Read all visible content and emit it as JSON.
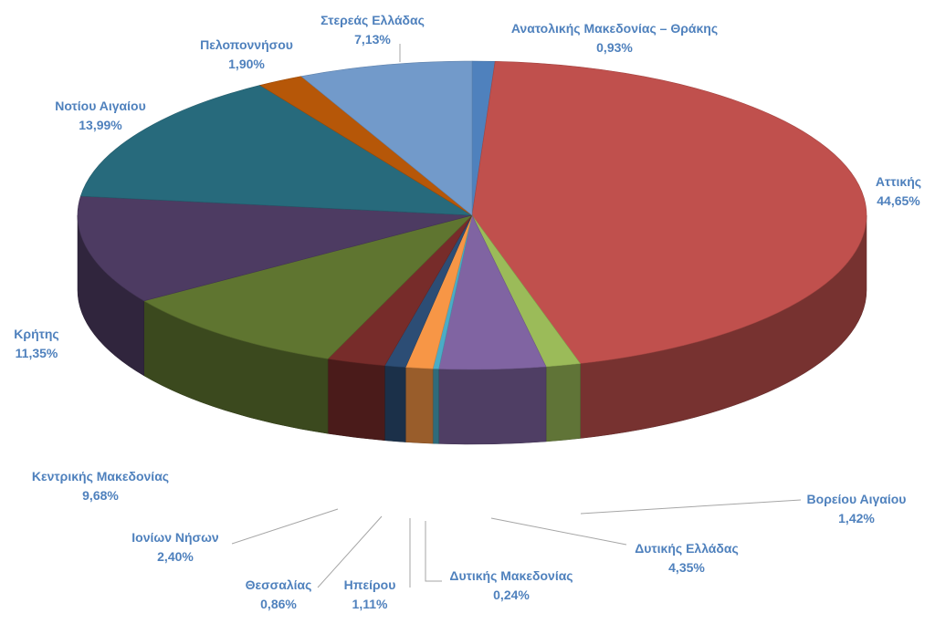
{
  "chart_data": {
    "type": "pie",
    "title": "",
    "start_angle_deg": 0,
    "direction": "clockwise",
    "value_unit": "%",
    "slices": [
      {
        "label": "Ανατολικής Μακεδονίας – Θράκης",
        "value": 0.93,
        "value_label": "0,93%",
        "color": "#4f81bd"
      },
      {
        "label": "Αττικής",
        "value": 44.65,
        "value_label": "44,65%",
        "color": "#c0504d"
      },
      {
        "label": "Βορείου Αιγαίου",
        "value": 1.42,
        "value_label": "1,42%",
        "color": "#9bbb59"
      },
      {
        "label": "Δυτικής Ελλάδας",
        "value": 4.35,
        "value_label": "4,35%",
        "color": "#8064a2"
      },
      {
        "label": "Δυτικής Μακεδονίας",
        "value": 0.24,
        "value_label": "0,24%",
        "color": "#4bacc6"
      },
      {
        "label": "Ηπείρου",
        "value": 1.11,
        "value_label": "1,11%",
        "color": "#f79646"
      },
      {
        "label": "Θεσσαλίας",
        "value": 0.86,
        "value_label": "0,86%",
        "color": "#2c4d75"
      },
      {
        "label": "Ιονίων Νήσων",
        "value": 2.4,
        "value_label": "2,40%",
        "color": "#772c2a"
      },
      {
        "label": "Κεντρικής Μακεδονίας",
        "value": 9.68,
        "value_label": "9,68%",
        "color": "#5f7530"
      },
      {
        "label": "Κρήτης",
        "value": 11.35,
        "value_label": "11,35%",
        "color": "#4d3b62"
      },
      {
        "label": "Νοτίου Αιγαίου",
        "value": 13.99,
        "value_label": "13,99%",
        "color": "#276a7c"
      },
      {
        "label": "Πελοποννήσου",
        "value": 1.9,
        "value_label": "1,90%",
        "color": "#b65708"
      },
      {
        "label": "Στερεάς Ελλάδας",
        "value": 7.13,
        "value_label": "7,13%",
        "color": "#729aca"
      }
    ]
  }
}
